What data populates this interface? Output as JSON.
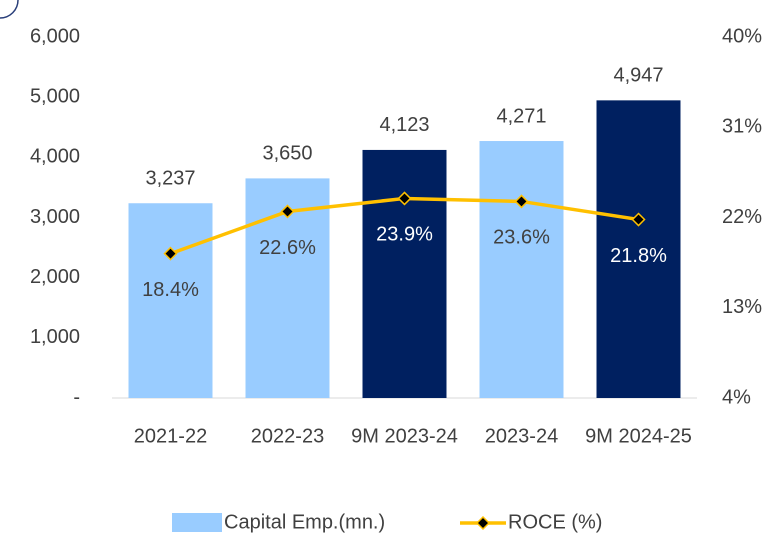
{
  "chart_data": {
    "type": "bar_line",
    "categories": [
      "2021-22",
      "2022-23",
      "9M 2023-24",
      "2023-24",
      "9M 2024-25"
    ],
    "series": [
      {
        "name": "Capital Emp.(mn.)",
        "type": "bar",
        "color": "#99ccff",
        "colors": [
          "#99ccff",
          "#99ccff",
          "#002060",
          "#99ccff",
          "#002060"
        ],
        "values": [
          3237,
          3650,
          4123,
          4271,
          4947
        ],
        "value_labels": [
          "3,237",
          "3,650",
          "4,123",
          "4,271",
          "4,947"
        ]
      },
      {
        "name": "ROCE (%)",
        "type": "line",
        "axis": "y2",
        "color": "#ffc000",
        "marker_color": "#000000",
        "values": [
          18.4,
          22.6,
          23.9,
          23.6,
          21.8
        ],
        "value_labels": [
          "18.4%",
          "22.6%",
          "23.9%",
          "23.6%",
          "21.8%"
        ]
      }
    ],
    "ylim": [
      0,
      6000
    ],
    "yticks": [
      {
        "value": 0,
        "label": "-"
      },
      {
        "value": 1000,
        "label": "1,000"
      },
      {
        "value": 2000,
        "label": "2,000"
      },
      {
        "value": 3000,
        "label": "3,000"
      },
      {
        "value": 4000,
        "label": "4,000"
      },
      {
        "value": 5000,
        "label": "5,000"
      },
      {
        "value": 6000,
        "label": "6,000"
      }
    ],
    "y2lim": [
      4,
      40
    ],
    "y2ticks": [
      {
        "value": 4,
        "label": "4%"
      },
      {
        "value": 13,
        "label": "13%"
      },
      {
        "value": 22,
        "label": "22%"
      },
      {
        "value": 31,
        "label": "31%"
      },
      {
        "value": 40,
        "label": "40%"
      }
    ],
    "legend": "bottom",
    "grid": false
  }
}
